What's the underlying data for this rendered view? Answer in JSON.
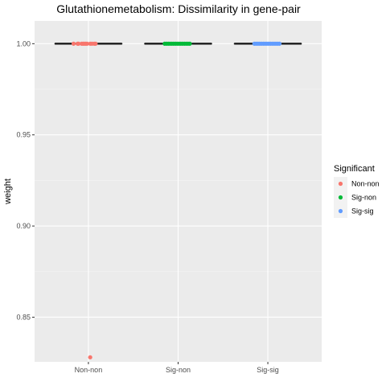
{
  "chart_data": {
    "type": "scatter",
    "title": "Glutathionemetabolism: Dissimilarity in gene-pair",
    "xlabel": "",
    "ylabel": "weight",
    "categories": [
      "Non-non",
      "Sig-non",
      "Sig-sig"
    ],
    "ylim": [
      0.8255,
      1.0125
    ],
    "yticks": [
      0.85,
      0.9,
      0.95,
      1.0
    ],
    "ytick_labels": [
      "0.85",
      "0.90",
      "0.95",
      "1.00"
    ],
    "grid": true,
    "legend": {
      "title": "Significant",
      "position": "right",
      "entries": [
        {
          "label": "Non-non",
          "color": "#F8766D"
        },
        {
          "label": "Sig-non",
          "color": "#00BA38"
        },
        {
          "label": "Sig-sig",
          "color": "#619CFF"
        }
      ]
    },
    "boxes": [
      {
        "category": "Non-non",
        "median": 1.0,
        "q1": 1.0,
        "q3": 1.0,
        "color": "#F8766D"
      },
      {
        "category": "Sig-non",
        "median": 1.0,
        "q1": 1.0,
        "q3": 1.0,
        "color": "#00BA38"
      },
      {
        "category": "Sig-sig",
        "median": 1.0,
        "q1": 1.0,
        "q3": 1.0,
        "color": "#619CFF"
      }
    ],
    "series": [
      {
        "category": "Non-non",
        "color": "#F8766D",
        "points": [
          {
            "jitter": -0.33,
            "y": 1.0
          },
          {
            "jitter": -0.24,
            "y": 1.0
          },
          {
            "jitter": -0.22,
            "y": 1.0
          },
          {
            "jitter": -0.15,
            "y": 1.0
          },
          {
            "jitter": -0.12,
            "y": 1.0
          },
          {
            "jitter": -0.09,
            "y": 1.0
          },
          {
            "jitter": -0.06,
            "y": 1.0
          },
          {
            "jitter": -0.03,
            "y": 1.0
          },
          {
            "jitter": 0.04,
            "y": 1.0
          },
          {
            "jitter": 0.08,
            "y": 1.0
          },
          {
            "jitter": 0.13,
            "y": 1.0
          },
          {
            "jitter": 0.16,
            "y": 1.0
          },
          {
            "jitter": 0.04,
            "y": 0.828
          }
        ]
      },
      {
        "category": "Sig-non",
        "color": "#00BA38",
        "points": [
          {
            "jitter": -0.3,
            "y": 1.0
          },
          {
            "jitter": -0.26,
            "y": 1.0
          },
          {
            "jitter": -0.22,
            "y": 1.0
          },
          {
            "jitter": -0.18,
            "y": 1.0
          },
          {
            "jitter": -0.14,
            "y": 1.0
          },
          {
            "jitter": -0.1,
            "y": 1.0
          },
          {
            "jitter": -0.06,
            "y": 1.0
          },
          {
            "jitter": -0.02,
            "y": 1.0
          },
          {
            "jitter": 0.02,
            "y": 1.0
          },
          {
            "jitter": 0.06,
            "y": 1.0
          },
          {
            "jitter": 0.1,
            "y": 1.0
          },
          {
            "jitter": 0.14,
            "y": 1.0
          },
          {
            "jitter": 0.18,
            "y": 1.0
          },
          {
            "jitter": 0.22,
            "y": 1.0
          },
          {
            "jitter": 0.26,
            "y": 1.0
          }
        ]
      },
      {
        "category": "Sig-sig",
        "color": "#619CFF",
        "points": [
          {
            "jitter": -0.3,
            "y": 1.0
          },
          {
            "jitter": -0.26,
            "y": 1.0
          },
          {
            "jitter": -0.22,
            "y": 1.0
          },
          {
            "jitter": -0.18,
            "y": 1.0
          },
          {
            "jitter": -0.14,
            "y": 1.0
          },
          {
            "jitter": -0.1,
            "y": 1.0
          },
          {
            "jitter": -0.06,
            "y": 1.0
          },
          {
            "jitter": -0.02,
            "y": 1.0
          },
          {
            "jitter": 0.02,
            "y": 1.0
          },
          {
            "jitter": 0.06,
            "y": 1.0
          },
          {
            "jitter": 0.1,
            "y": 1.0
          },
          {
            "jitter": 0.14,
            "y": 1.0
          },
          {
            "jitter": 0.18,
            "y": 1.0
          },
          {
            "jitter": 0.22,
            "y": 1.0
          },
          {
            "jitter": 0.26,
            "y": 1.0
          }
        ]
      }
    ]
  }
}
